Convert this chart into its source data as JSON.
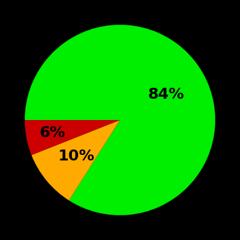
{
  "slices": [
    84,
    10,
    6
  ],
  "colors": [
    "#00ee00",
    "#ffaa00",
    "#cc0000"
  ],
  "labels": [
    "84%",
    "10%",
    "6%"
  ],
  "label_r": [
    0.55,
    0.6,
    0.72
  ],
  "background_color": "#000000",
  "text_color": "#000000",
  "startangle": 180,
  "figsize": [
    3.5,
    3.5
  ],
  "dpi": 100
}
